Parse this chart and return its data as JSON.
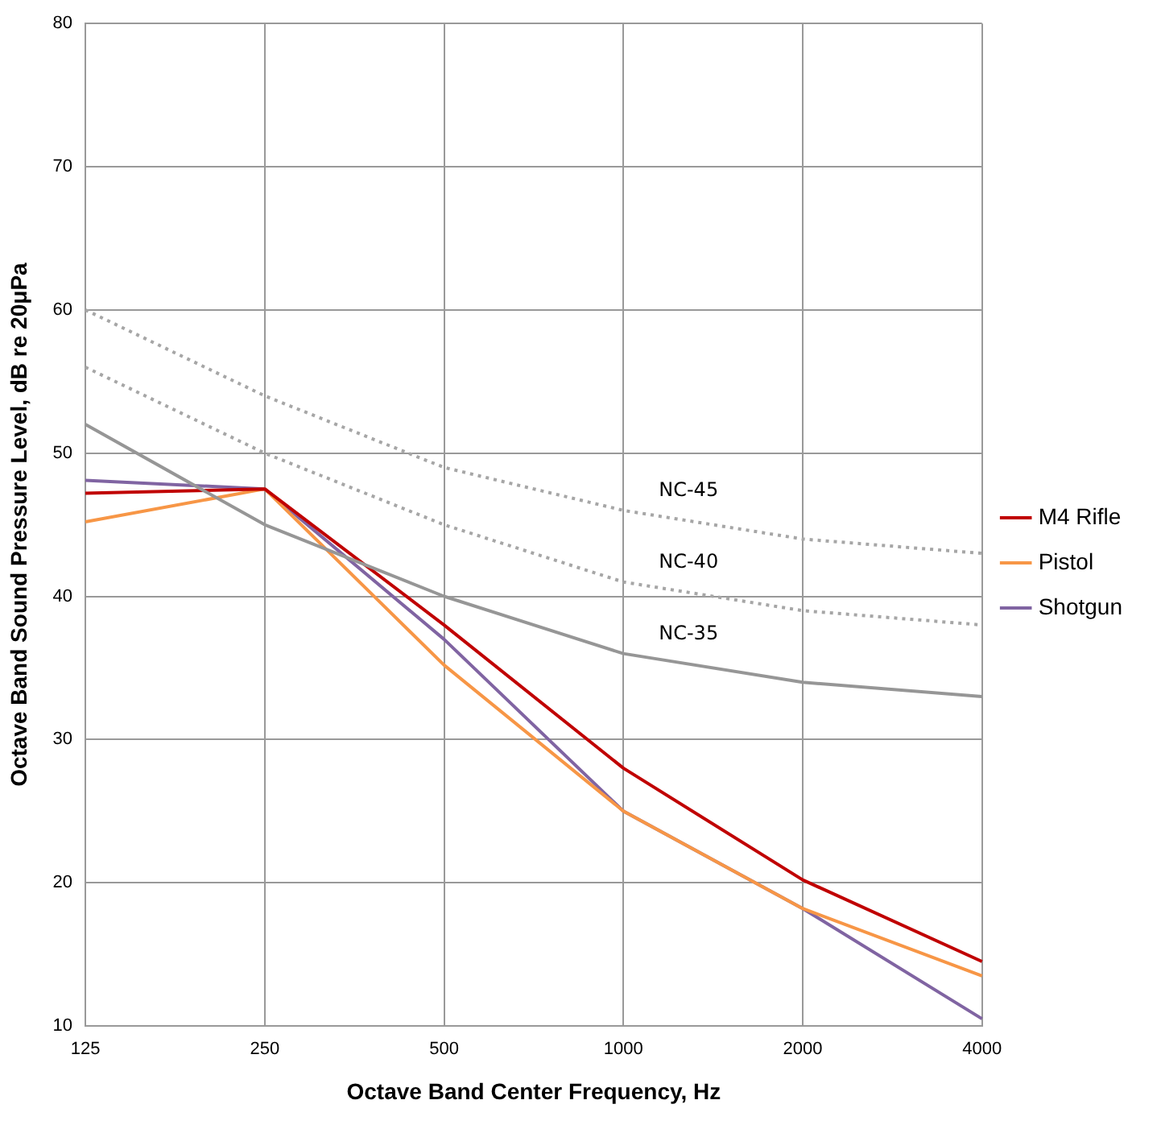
{
  "chart_data": {
    "type": "line",
    "xlabel": "Octave Band Center Frequency, Hz",
    "ylabel": "Octave Band Sound Pressure Level, dB re 20μPa",
    "categories": [
      "125",
      "250",
      "500",
      "1000",
      "2000",
      "4000"
    ],
    "ylim": [
      10,
      80
    ],
    "yticks": [
      10,
      20,
      30,
      40,
      50,
      60,
      70,
      80
    ],
    "grid": true,
    "legend": "right",
    "marker": "none",
    "series": [
      {
        "color": "#a6a6a6",
        "line_style": "dotted",
        "values": [
          60,
          54,
          49,
          46,
          44,
          43
        ]
      },
      {
        "color": "#a6a6a6",
        "line_style": "dotted",
        "values": [
          56,
          50,
          45,
          41,
          39,
          38
        ]
      },
      {
        "color": "#969696",
        "line_style": "solid",
        "values": [
          52,
          45,
          40,
          36,
          34,
          33
        ]
      },
      {
        "name": "M4 Rifle",
        "color": "#c00000",
        "line_style": "solid",
        "values": [
          47.2,
          47.5,
          38,
          28,
          20.2,
          14.5
        ]
      },
      {
        "name": "Pistol",
        "color": "#f79646",
        "line_style": "solid",
        "values": [
          45.2,
          47.5,
          35.2,
          25,
          18.2,
          13.5
        ]
      },
      {
        "name": "Shotgun",
        "color": "#8064a2",
        "line_style": "solid",
        "values": [
          48.1,
          47.5,
          37,
          25,
          18.2,
          10.5
        ]
      }
    ],
    "annotations": [
      {
        "text": "NC-45",
        "x": "1000",
        "y": 46
      },
      {
        "text": "NC-40",
        "x": "1000",
        "y": 41
      },
      {
        "text": "NC-35",
        "x": "1000",
        "y": 36
      }
    ]
  }
}
